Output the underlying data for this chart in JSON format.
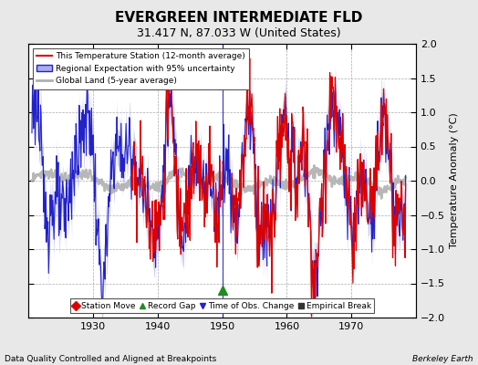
{
  "title": "EVERGREEN INTERMEDIATE FLD",
  "subtitle": "31.417 N, 87.033 W (United States)",
  "xlabel_bottom": "Data Quality Controlled and Aligned at Breakpoints",
  "xlabel_right": "Berkeley Earth",
  "ylabel": "Temperature Anomaly (°C)",
  "xlim": [
    1920,
    1980
  ],
  "ylim": [
    -2,
    2
  ],
  "yticks": [
    -2,
    -1.5,
    -1,
    -0.5,
    0,
    0.5,
    1,
    1.5,
    2
  ],
  "xticks": [
    1930,
    1940,
    1950,
    1960,
    1970
  ],
  "plot_bg": "#ffffff",
  "fig_bg": "#e8e8e8",
  "red_color": "#dd0000",
  "blue_color": "#2222cc",
  "blue_band_color": "#aaaaee",
  "gray_color": "#b0b0b0",
  "obs_change_x": 1950.0,
  "record_gap_x": 1950.0,
  "record_gap_y": -1.6,
  "seed": 123,
  "n_years": 58,
  "start_year": 1920.5
}
